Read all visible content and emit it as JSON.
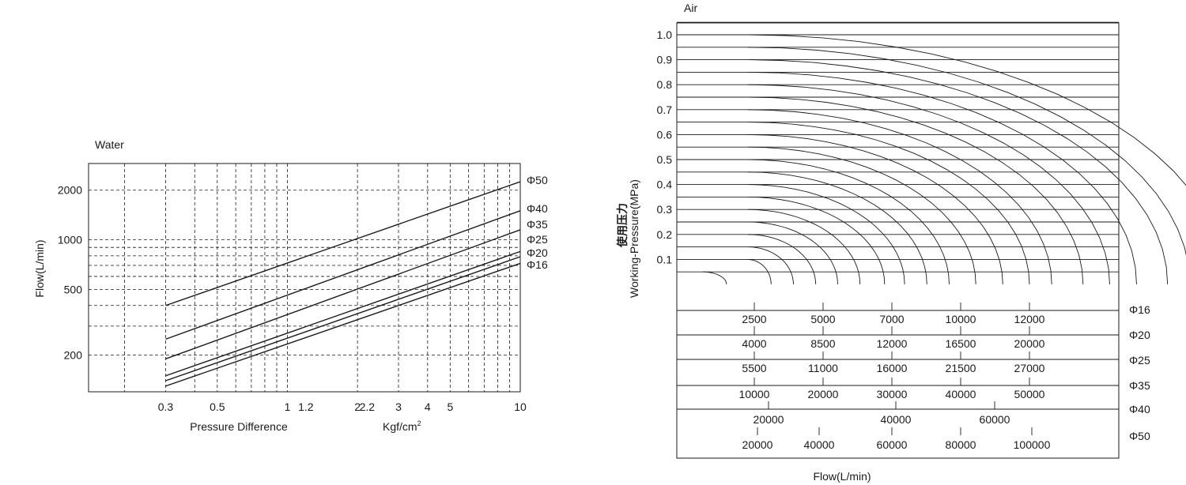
{
  "chart_data": [
    {
      "type": "line",
      "title": "Water",
      "ylabel": "Flow(L/min)",
      "xlabel": "Pressure Difference",
      "xunit_base": "Kgf/cm",
      "xunit_exp": "2",
      "x_scale": "log",
      "y_scale": "log",
      "xlim": [
        0.14,
        10
      ],
      "ylim": [
        120,
        2900
      ],
      "x_ticks": [
        0.3,
        0.5,
        1,
        1.2,
        2,
        2.2,
        3,
        4,
        5,
        10
      ],
      "x_tick_labels": [
        "0.3",
        "0.5",
        "1",
        "1.2",
        "2",
        "2.2",
        "3",
        "4",
        "5",
        "10"
      ],
      "x_gridlines": [
        0.2,
        0.3,
        0.4,
        0.5,
        0.6,
        0.7,
        0.8,
        0.9,
        1,
        2,
        3,
        4,
        5,
        6,
        7,
        8,
        9
      ],
      "y_ticks": [
        200,
        500,
        1000,
        2000
      ],
      "y_tick_labels": [
        "200",
        "500",
        "1000",
        "2000"
      ],
      "y_gridlines": [
        200,
        300,
        400,
        500,
        600,
        700,
        800,
        900,
        1000,
        2000
      ],
      "grid": true,
      "legend": "right",
      "series": [
        {
          "name": "Φ50",
          "x": [
            0.3,
            10
          ],
          "y": [
            400,
            2250
          ]
        },
        {
          "name": "Φ40",
          "x": [
            0.3,
            10
          ],
          "y": [
            250,
            1500
          ]
        },
        {
          "name": "Φ35",
          "x": [
            0.3,
            10
          ],
          "y": [
            190,
            1150
          ]
        },
        {
          "name": "Φ25",
          "x": [
            0.3,
            10
          ],
          "y": [
            150,
            850
          ]
        },
        {
          "name": "Φ20",
          "x": [
            0.3,
            10
          ],
          "y": [
            140,
            790
          ]
        },
        {
          "name": "Φ16",
          "x": [
            0.3,
            10
          ],
          "y": [
            130,
            720
          ]
        }
      ],
      "color": "#1a1a1a"
    },
    {
      "type": "line",
      "title": "Air",
      "ylabel_cn": "使用压力",
      "ylabel": "Working-Pressure(MPa)",
      "xlabel": "Flow(L/min)",
      "ylim": [
        0,
        1.05
      ],
      "y_ticks": [
        0.1,
        0.2,
        0.3,
        0.4,
        0.5,
        0.6,
        0.7,
        0.8,
        0.9,
        1.0
      ],
      "y_tick_labels": [
        "0.1",
        "0.2",
        "0.3",
        "0.4",
        "0.5",
        "0.6",
        "0.7",
        "0.8",
        "0.9",
        "1.0"
      ],
      "grid": "horizontal",
      "curve_shape": "quarter-ellipse",
      "curves": [
        {
          "pressure": 1.0,
          "max_flow": 18770
        },
        {
          "pressure": 0.95,
          "max_flow": 17540
        },
        {
          "pressure": 0.9,
          "max_flow": 16770
        },
        {
          "pressure": 0.85,
          "max_flow": 15700
        },
        {
          "pressure": 0.8,
          "max_flow": 14770
        },
        {
          "pressure": 0.75,
          "max_flow": 13850
        },
        {
          "pressure": 0.7,
          "max_flow": 12770
        },
        {
          "pressure": 0.65,
          "max_flow": 12000
        },
        {
          "pressure": 0.6,
          "max_flow": 11080
        },
        {
          "pressure": 0.55,
          "max_flow": 10150
        },
        {
          "pressure": 0.5,
          "max_flow": 9230
        },
        {
          "pressure": 0.45,
          "max_flow": 8460
        },
        {
          "pressure": 0.4,
          "max_flow": 7690
        },
        {
          "pressure": 0.35,
          "max_flow": 7000
        },
        {
          "pressure": 0.3,
          "max_flow": 6150
        },
        {
          "pressure": 0.25,
          "max_flow": 5380
        },
        {
          "pressure": 0.2,
          "max_flow": 4620
        },
        {
          "pressure": 0.15,
          "max_flow": 3850
        },
        {
          "pressure": 0.1,
          "max_flow": 3080
        },
        {
          "pressure": 0.05,
          "max_flow": 1540
        }
      ],
      "flow_unit_note": "max_flow values expressed on the Φ16 reference scale",
      "conversion_scales": [
        {
          "name": "Φ16",
          "labels": [
            "2500",
            "5000",
            "7000",
            "10000",
            "12000"
          ]
        },
        {
          "name": "Φ20",
          "labels": [
            "4000",
            "8500",
            "12000",
            "16500",
            "20000"
          ]
        },
        {
          "name": "Φ25",
          "labels": [
            "5500",
            "11000",
            "16000",
            "21500",
            "27000"
          ]
        },
        {
          "name": "Φ35",
          "labels": [
            "10000",
            "20000",
            "30000",
            "40000",
            "50000"
          ]
        },
        {
          "name": "Φ40",
          "labels": [
            "20000",
            "40000",
            "60000"
          ]
        },
        {
          "name": "Φ50",
          "labels": [
            "20000",
            "40000",
            "60000",
            "80000",
            "100000"
          ]
        }
      ],
      "color": "#1a1a1a"
    }
  ]
}
